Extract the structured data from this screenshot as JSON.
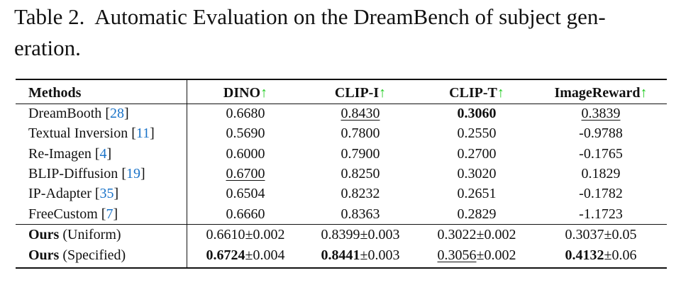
{
  "caption": {
    "lines": [
      "Table 2.  Automatic Evaluation on the DreamBench of subject gen-",
      "eration."
    ]
  },
  "table": {
    "header": {
      "method": "Methods",
      "metrics": [
        {
          "label": "DINO",
          "arrow": "↑"
        },
        {
          "label": "CLIP-I",
          "arrow": "↑"
        },
        {
          "label": "CLIP-T",
          "arrow": "↑"
        },
        {
          "label": "ImageReward",
          "arrow": "↑"
        }
      ]
    },
    "rows": [
      {
        "method": {
          "name": "DreamBooth",
          "cite": "[28]"
        },
        "cells": [
          {
            "value": "0.6680"
          },
          {
            "value": "0.8430",
            "underline": true
          },
          {
            "value": "0.3060",
            "bold": true
          },
          {
            "value": "0.3839",
            "underline": true
          }
        ]
      },
      {
        "method": {
          "name": "Textual Inversion",
          "cite": "[11]"
        },
        "cells": [
          {
            "value": "0.5690"
          },
          {
            "value": "0.7800"
          },
          {
            "value": "0.2550"
          },
          {
            "value": "-0.9788"
          }
        ]
      },
      {
        "method": {
          "name": "Re-Imagen",
          "cite": "[4]"
        },
        "cells": [
          {
            "value": "0.6000"
          },
          {
            "value": "0.7900"
          },
          {
            "value": "0.2700"
          },
          {
            "value": "-0.1765"
          }
        ]
      },
      {
        "method": {
          "name": "BLIP-Diffusion",
          "cite": "[19]"
        },
        "cells": [
          {
            "value": "0.6700",
            "underline": true
          },
          {
            "value": "0.8250"
          },
          {
            "value": "0.3020"
          },
          {
            "value": "0.1829"
          }
        ]
      },
      {
        "method": {
          "name": "IP-Adapter",
          "cite": "[35]"
        },
        "cells": [
          {
            "value": "0.6504"
          },
          {
            "value": "0.8232"
          },
          {
            "value": "0.2651"
          },
          {
            "value": "-0.1782"
          }
        ]
      },
      {
        "method": {
          "name": "FreeCustom",
          "cite": "[7]"
        },
        "cells": [
          {
            "value": "0.6660"
          },
          {
            "value": "0.8363"
          },
          {
            "value": "0.2829"
          },
          {
            "value": "-1.1723"
          }
        ]
      }
    ],
    "ours_rows": [
      {
        "method": {
          "name": "Ours",
          "variant": "(Uniform)"
        },
        "cells": [
          {
            "value": "0.6610",
            "error": "±0.002"
          },
          {
            "value": "0.8399",
            "error": "±0.003"
          },
          {
            "value": "0.3022",
            "error": "±0.002"
          },
          {
            "value": "0.3037",
            "error": "±0.05"
          }
        ]
      },
      {
        "method": {
          "name": "Ours",
          "variant": "(Specified)"
        },
        "cells": [
          {
            "value": "0.6724",
            "error": "±0.004",
            "bold": true
          },
          {
            "value": "0.8441",
            "error": "±0.003",
            "bold": true
          },
          {
            "value": "0.3056",
            "error": "±0.002",
            "underline": true
          },
          {
            "value": "0.4132",
            "error": "±0.06",
            "bold": true
          }
        ]
      }
    ]
  }
}
